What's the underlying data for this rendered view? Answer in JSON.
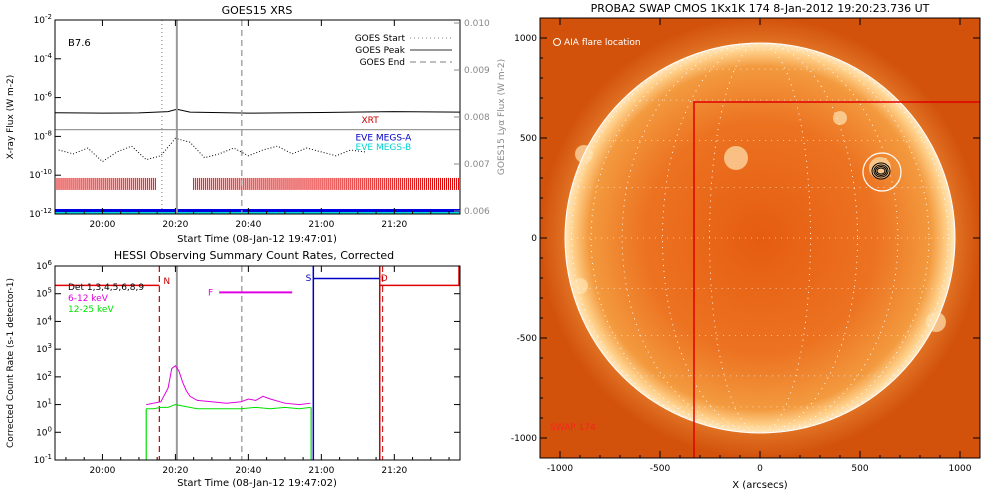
{
  "chart_data": [
    {
      "type": "line",
      "title": "GOES15 XRS",
      "xlabel": "Start Time (08-Jan-12 19:47:01)",
      "ylabel": "X-ray Flux (W m-2)",
      "ylabel_right": "GOES15 Lyα Flux (W m-2)",
      "xticks": [
        "20:00",
        "20:20",
        "20:40",
        "21:00",
        "21:20"
      ],
      "xlim_minutes_after_2000": [
        -13,
        98
      ],
      "ylim_log10": [
        -12,
        -2
      ],
      "yticks": [
        "10-12",
        "10-10",
        "10-8",
        "10-6",
        "10-4",
        "10-2"
      ],
      "yticks_right": [
        "0.006",
        "0.007",
        "0.008",
        "0.009",
        "0.010"
      ],
      "ylim_right": [
        0.006,
        0.01
      ],
      "flare_class": "B7.6",
      "legend": [
        {
          "label": "GOES Start",
          "style": "dotted",
          "x_minute": 16.3
        },
        {
          "label": "GOES Peak",
          "style": "solid",
          "x_minute": 20.4
        },
        {
          "label": "GOES End",
          "style": "dashed",
          "x_minute": 38.2
        }
      ],
      "series": [
        {
          "name": "XRT",
          "color": "#c80000",
          "label_x_minute": 71,
          "y_log10_label": -7.1
        },
        {
          "name": "EVE MEGS-A",
          "color": "#0000c8"
        },
        {
          "name": "EVE MEGS-B",
          "color": "#00d4d4"
        }
      ],
      "line_long_x": [
        -13,
        0,
        10,
        18,
        20.4,
        24,
        40,
        60,
        80,
        98
      ],
      "line_long_y_log10": [
        -6.78,
        -6.8,
        -6.79,
        -6.72,
        -6.6,
        -6.75,
        -6.8,
        -6.77,
        -6.72,
        -6.75
      ],
      "line_lya_y_log10": -7.65,
      "line_short_x": [
        -12,
        -8,
        -4,
        0,
        4,
        8,
        12,
        16,
        20,
        24,
        28,
        32,
        36,
        40,
        44,
        48,
        52,
        56,
        60,
        64,
        68,
        72
      ],
      "line_short_y_log10": [
        -8.7,
        -8.9,
        -8.6,
        -9.3,
        -8.8,
        -8.5,
        -9.2,
        -9.0,
        -8.1,
        -8.3,
        -9.1,
        -8.9,
        -8.6,
        -9.0,
        -8.7,
        -8.5,
        -8.9,
        -8.6,
        -8.8,
        -9.0,
        -8.7,
        -8.8
      ],
      "red_tick_segments_minutes": [
        [
          -13,
          15
        ],
        [
          25,
          98
        ]
      ],
      "red_tick_level_log10": -10.45
    },
    {
      "type": "line",
      "title": "HESSI Observing Summary Count Rates, Corrected",
      "xlabel": "Start Time (08-Jan-12 19:47:02)",
      "ylabel": "Corrected Count Rate (s-1 detector-1)",
      "xticks": [
        "20:00",
        "20:20",
        "20:40",
        "21:00",
        "21:20"
      ],
      "xlim_minutes_after_2000": [
        -13,
        98
      ],
      "ylim_log10": [
        -1,
        6
      ],
      "yticks": [
        "10-1",
        "100",
        "101",
        "102",
        "103",
        "104",
        "105",
        "106"
      ],
      "legend": [
        {
          "label": "Det 1,3,4,5,6,8,9",
          "color": "#000000"
        },
        {
          "label": "6-12 keV",
          "color": "#e000e0"
        },
        {
          "label": "12-25 keV",
          "color": "#00e000"
        }
      ],
      "flags": [
        {
          "label": "N",
          "color": "#c80000",
          "x_minute": 15.6
        },
        {
          "label": "F",
          "color": "#e000e0",
          "x_start": 32,
          "x_end": 52,
          "y_log10": 5.05
        },
        {
          "label": "S",
          "color": "#0000c8",
          "x_minute": 57.8
        },
        {
          "label": "D",
          "color": "#c80000",
          "x_minute": 76.0
        }
      ],
      "series": [
        {
          "name": "6-12 keV",
          "color": "#e000e0",
          "x": [
            12,
            14,
            16,
            18,
            19,
            20,
            21,
            22,
            23,
            24,
            26,
            30,
            34,
            38,
            40,
            42,
            44,
            46,
            50,
            54,
            57
          ],
          "y_log10": [
            1.0,
            1.05,
            1.1,
            1.6,
            2.3,
            2.4,
            2.2,
            1.8,
            1.5,
            1.3,
            1.15,
            1.1,
            1.05,
            1.1,
            1.2,
            1.15,
            1.3,
            1.2,
            1.05,
            1.0,
            1.05
          ]
        },
        {
          "name": "12-25 keV",
          "color": "#00e000",
          "x": [
            12,
            14,
            16,
            18,
            20,
            22,
            24,
            26,
            30,
            34,
            38,
            42,
            46,
            50,
            54,
            57
          ],
          "y_log10": [
            0.85,
            0.85,
            0.9,
            0.9,
            1.0,
            0.95,
            0.9,
            0.85,
            0.85,
            0.85,
            0.85,
            0.9,
            0.85,
            0.9,
            0.85,
            0.9
          ]
        }
      ],
      "attenuator_red_level_log10": 5.3,
      "attenuator_blue_level_log10": 5.55
    },
    {
      "type": "image",
      "title": "PROBA2 SWAP CMOS 1Kx1K 174  8-Jan-2012 19:20:23.736 UT",
      "xlabel": "X (arcsecs)",
      "xticks": [
        "-1000",
        "-500",
        "0",
        "500",
        "1000"
      ],
      "yticks": [
        "1000",
        "500",
        "0",
        "-500",
        "-1000"
      ],
      "xlim": [
        -1100,
        1100
      ],
      "ylim": [
        -1100,
        1100
      ],
      "annotation": "AIA flare location",
      "corner_label": "SWAP 174",
      "flare_location": [
        610,
        330
      ],
      "fov_box_corner": [
        -330,
        680
      ],
      "solar_radius_arcsec": 975
    }
  ]
}
